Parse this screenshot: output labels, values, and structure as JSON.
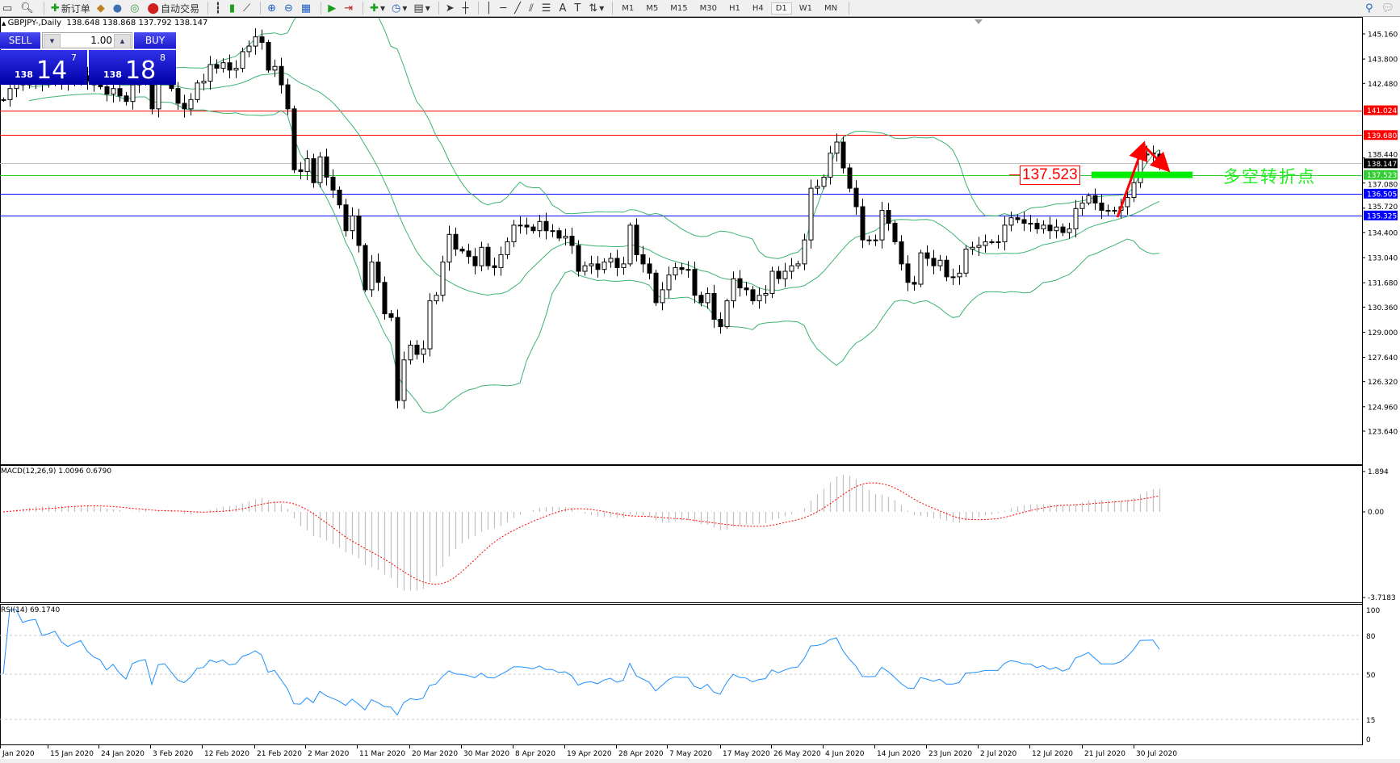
{
  "toolbar": {
    "new_order_label": "新订单",
    "auto_trading_label": "自动交易",
    "periods": [
      "M1",
      "M5",
      "M15",
      "M30",
      "H1",
      "H4",
      "D1",
      "W1",
      "MN"
    ],
    "active_period": "D1"
  },
  "chart": {
    "symbol_line": "GBPJPY-,Daily  138.648 138.868 137.792 138.147",
    "last_bar": {
      "open": 138.648,
      "high": 138.868,
      "low": 137.792,
      "close": 138.147
    },
    "closes": [
      141.6,
      142.2,
      142.5,
      142.4,
      142.6,
      142.7,
      142.5,
      142.6,
      142.8,
      142.6,
      142.5,
      142.7,
      142.9,
      142.6,
      142.4,
      142.3,
      141.9,
      142.2,
      141.8,
      141.5,
      142.4,
      142.6,
      142.7,
      141.1,
      142.8,
      142.9,
      142.2,
      141.4,
      141.1,
      141.6,
      142.5,
      142.6,
      143.5,
      143.3,
      143.6,
      143.2,
      143.3,
      144.2,
      144.5,
      145.0,
      144.7,
      143.2,
      143.4,
      142.4,
      141.1,
      137.8,
      137.7,
      138.4,
      137.1,
      138.5,
      137.4,
      136.7,
      135.9,
      134.5,
      135.3,
      133.7,
      131.3,
      132.8,
      131.7,
      130.0,
      129.8,
      125.3,
      127.5,
      128.3,
      127.8,
      128.1,
      130.7,
      131.0,
      132.8,
      134.3,
      133.5,
      133.4,
      133.1,
      132.6,
      133.6,
      132.6,
      132.5,
      133.2,
      133.9,
      134.8,
      134.8,
      134.7,
      134.5,
      135.0,
      134.5,
      134.5,
      134.1,
      134.2,
      133.7,
      132.3,
      132.6,
      132.7,
      132.4,
      132.8,
      133.0,
      132.5,
      132.7,
      134.8,
      133.2,
      132.7,
      132.2,
      130.6,
      131.3,
      132.1,
      132.5,
      132.4,
      132.4,
      131.0,
      130.6,
      131.1,
      129.7,
      129.3,
      130.7,
      131.9,
      131.4,
      131.3,
      130.7,
      131.0,
      131.1,
      132.3,
      131.9,
      132.3,
      132.6,
      132.7,
      134.0,
      136.8,
      136.9,
      137.4,
      138.7,
      139.3,
      137.9,
      136.8,
      135.8,
      134.0,
      133.96,
      134.0,
      135.6,
      134.9,
      133.9,
      132.7,
      131.7,
      131.6,
      133.3,
      133.0,
      132.6,
      132.9,
      132.0,
      132.0,
      132.2,
      133.5,
      133.6,
      133.7,
      133.9,
      133.9,
      133.9,
      134.8,
      135.2,
      135.1,
      134.9,
      134.9,
      134.6,
      134.8,
      134.5,
      134.7,
      134.4,
      134.6,
      135.7,
      136.0,
      136.4,
      136.0,
      135.6,
      135.6,
      135.6,
      135.8,
      136.3,
      137.1,
      138.6,
      138.65,
      138.7,
      138.147
    ],
    "price_ticks": [
      "145.160",
      "143.800",
      "142.480",
      "138.440",
      "137.080",
      "135.720",
      "134.400",
      "133.040",
      "131.680",
      "130.360",
      "129.000",
      "127.640",
      "126.320",
      "124.960",
      "123.640"
    ],
    "price_range": [
      123.64,
      145.16
    ],
    "levels": [
      {
        "value": "141.024",
        "color": "#ff0000",
        "text_color": "#ffffff"
      },
      {
        "value": "139.680",
        "color": "#ff0000",
        "text_color": "#ffffff"
      },
      {
        "value": "138.147",
        "color": "#c0c0c0",
        "label_bg": "#000000",
        "text_color": "#ffffff"
      },
      {
        "value": "137.523",
        "color": "#32cd32",
        "text_color": "#ffffff"
      },
      {
        "value": "136.505",
        "color": "#0000ff",
        "text_color": "#ffffff"
      },
      {
        "value": "135.325",
        "color": "#0000ff",
        "text_color": "#ffffff"
      }
    ],
    "bollinger": {
      "period": 20,
      "deviation": 2,
      "color": "#3cb371"
    },
    "dates": [
      "Jan 2020",
      "15 Jan 2020",
      "24 Jan 2020",
      "3 Feb 2020",
      "12 Feb 2020",
      "21 Feb 2020",
      "2 Mar 2020",
      "11 Mar 2020",
      "20 Mar 2020",
      "30 Mar 2020",
      "8 Apr 2020",
      "19 Apr 2020",
      "28 Apr 2020",
      "7 May 2020",
      "17 May 2020",
      "26 May 2020",
      "4 Jun 2020",
      "14 Jun 2020",
      "23 Jun 2020",
      "2 Jul 2020",
      "12 Jul 2020",
      "21 Jul 2020",
      "30 Jul 2020"
    ]
  },
  "trade_panel": {
    "sell_label": "SELL",
    "buy_label": "BUY",
    "lot": "1.00",
    "sell_price": {
      "prefix": "138",
      "big": "14",
      "sup": "7"
    },
    "buy_price": {
      "prefix": "138",
      "big": "18",
      "sup": "8"
    }
  },
  "annotation": {
    "price_label": "137.523",
    "text": "多空转折点",
    "arrow_color": "#ff0000",
    "bar_color": "#00ee00"
  },
  "macd": {
    "label": "MACD(12,26,9) 1.0096 0.6790",
    "ticks": [
      "1.894",
      "0.00",
      "-3.7183"
    ],
    "hist_color": "#c0c0c0",
    "signal_color": "#ff0000"
  },
  "rsi": {
    "label": "RSI(14) 69.1740",
    "ticks": [
      "100",
      "80",
      "50",
      "15",
      "0"
    ],
    "color": "#1e90ff"
  }
}
